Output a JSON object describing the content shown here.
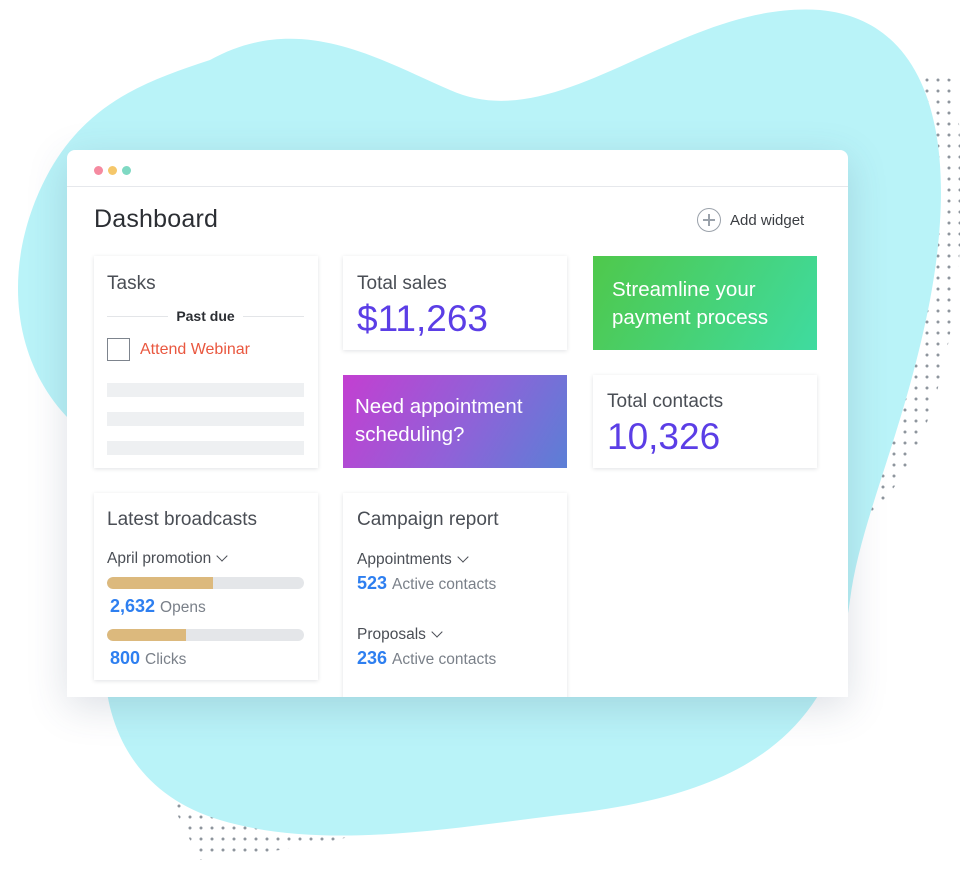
{
  "window": {
    "dot_colors": [
      "#f58aa0",
      "#f5c76a",
      "#7fd9c3"
    ]
  },
  "header": {
    "title": "Dashboard",
    "add_widget_label": "Add widget"
  },
  "tasks": {
    "title": "Tasks",
    "section_label": "Past due",
    "items": [
      {
        "label": "Attend Webinar",
        "checked": false
      }
    ]
  },
  "total_sales": {
    "title": "Total sales",
    "value": "$11,263"
  },
  "streamline_promo": {
    "text": "Streamline your payment process"
  },
  "appointment_promo": {
    "text": "Need appointment scheduling?"
  },
  "total_contacts": {
    "title": "Total contacts",
    "value": "10,326"
  },
  "broadcasts": {
    "title": "Latest broadcasts",
    "selected": "April promotion",
    "metrics": [
      {
        "value": "2,632",
        "label": "Opens",
        "progress": 0.54
      },
      {
        "value": "800",
        "label": "Clicks",
        "progress": 0.4
      }
    ]
  },
  "campaign_report": {
    "title": "Campaign report",
    "groups": [
      {
        "name": "Appointments",
        "value": "523",
        "label": "Active contacts"
      },
      {
        "name": "Proposals",
        "value": "236",
        "label": "Active contacts"
      }
    ]
  },
  "colors": {
    "accent_purple": "#5b3ee6",
    "link_blue": "#2e7ff0",
    "task_red": "#e9573f",
    "blob": "#b9f3f8",
    "progress": "#dcb97d"
  }
}
